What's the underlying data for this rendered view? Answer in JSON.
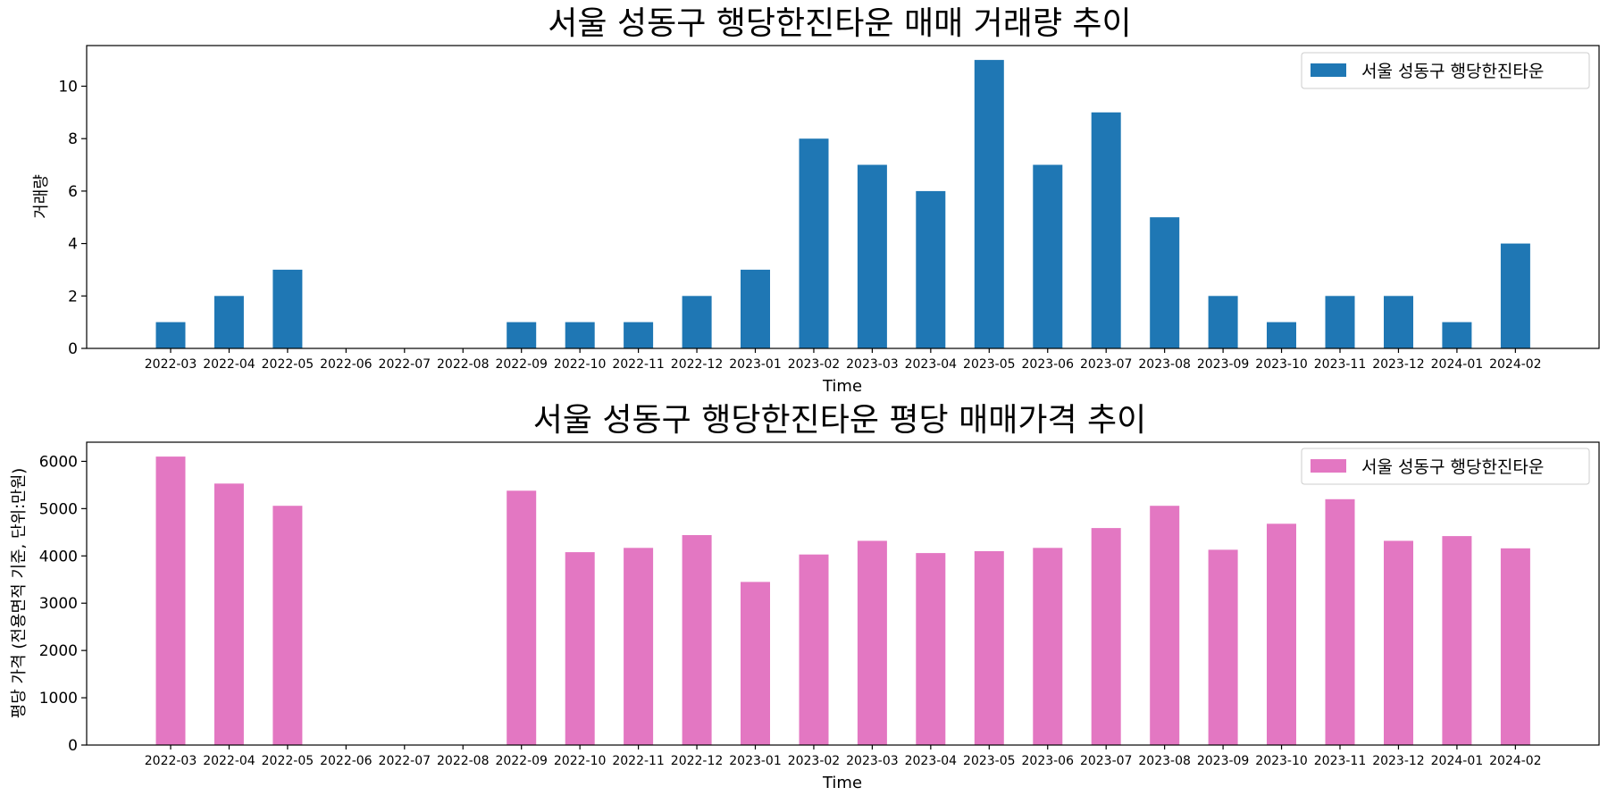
{
  "chart_data": [
    {
      "type": "bar",
      "title": "서울 성동구 행당한진타운 매매 거래량 추이",
      "xlabel": "Time",
      "ylabel": "거래량",
      "categories": [
        "2022-03",
        "2022-04",
        "2022-05",
        "2022-06",
        "2022-07",
        "2022-08",
        "2022-09",
        "2022-10",
        "2022-11",
        "2022-12",
        "2023-01",
        "2023-02",
        "2023-03",
        "2023-04",
        "2023-05",
        "2023-06",
        "2023-07",
        "2023-08",
        "2023-09",
        "2023-10",
        "2023-11",
        "2023-12",
        "2024-01",
        "2024-02"
      ],
      "series": [
        {
          "name": "서울 성동구 행당한진타운",
          "color": "#1f77b4",
          "values": [
            1,
            2,
            3,
            0,
            0,
            0,
            1,
            1,
            1,
            2,
            3,
            8,
            7,
            6,
            11,
            7,
            9,
            5,
            2,
            1,
            2,
            2,
            1,
            4
          ]
        }
      ],
      "ylim": [
        0,
        11.55
      ],
      "yticks": [
        0,
        2,
        4,
        6,
        8,
        10
      ],
      "legend": "top-right",
      "grid": false
    },
    {
      "type": "bar",
      "title": "서울 성동구 행당한진타운 평당 매매가격 추이",
      "xlabel": "Time",
      "ylabel": "평당 가격 (전용면적 기준, 단위:만원)",
      "categories": [
        "2022-03",
        "2022-04",
        "2022-05",
        "2022-06",
        "2022-07",
        "2022-08",
        "2022-09",
        "2022-10",
        "2022-11",
        "2022-12",
        "2023-01",
        "2023-02",
        "2023-03",
        "2023-04",
        "2023-05",
        "2023-06",
        "2023-07",
        "2023-08",
        "2023-09",
        "2023-10",
        "2023-11",
        "2023-12",
        "2024-01",
        "2024-02"
      ],
      "series": [
        {
          "name": "서울 성동구 행당한진타운",
          "color": "#e377c2",
          "values": [
            6100,
            5530,
            5060,
            0,
            0,
            0,
            5380,
            4080,
            4170,
            4440,
            3450,
            4030,
            4320,
            4060,
            4100,
            4170,
            4590,
            5060,
            4130,
            4680,
            5200,
            4320,
            4420,
            4160
          ]
        }
      ],
      "ylim": [
        0,
        6405
      ],
      "yticks": [
        0,
        1000,
        2000,
        3000,
        4000,
        5000,
        6000
      ],
      "legend": "top-right",
      "grid": false
    }
  ]
}
